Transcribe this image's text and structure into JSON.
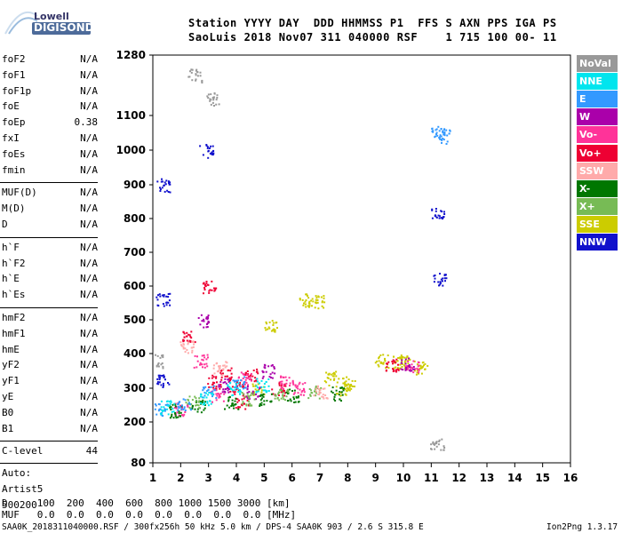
{
  "logo": {
    "top": "Lowell",
    "bottom": "DIGISONDE"
  },
  "header": {
    "line1": "Station YYYY DAY  DDD HHMMSS P1  FFS S AXN PPS IGA PS",
    "line2": "SaoLuis 2018 Nov07 311 040000 RSF    1 715 100 00- 11"
  },
  "params_group1": [
    {
      "name": "foF2",
      "value": "N/A"
    },
    {
      "name": "foF1",
      "value": "N/A"
    },
    {
      "name": "foF1p",
      "value": "N/A"
    },
    {
      "name": "foE",
      "value": "N/A"
    },
    {
      "name": "foEp",
      "value": "0.38"
    },
    {
      "name": "fxI",
      "value": "N/A"
    },
    {
      "name": "foEs",
      "value": "N/A"
    },
    {
      "name": "fmin",
      "value": "N/A"
    }
  ],
  "params_group2": [
    {
      "name": "MUF(D)",
      "value": "N/A"
    },
    {
      "name": "M(D)",
      "value": "N/A"
    },
    {
      "name": "D",
      "value": "N/A"
    }
  ],
  "params_group3": [
    {
      "name": "h`F",
      "value": "N/A"
    },
    {
      "name": "h`F2",
      "value": "N/A"
    },
    {
      "name": "h`E",
      "value": "N/A"
    },
    {
      "name": "h`Es",
      "value": "N/A"
    }
  ],
  "params_group4": [
    {
      "name": "hmF2",
      "value": "N/A"
    },
    {
      "name": "hmF1",
      "value": "N/A"
    },
    {
      "name": "hmE",
      "value": "N/A"
    },
    {
      "name": "yF2",
      "value": "N/A"
    },
    {
      "name": "yF1",
      "value": "N/A"
    },
    {
      "name": "yE",
      "value": "N/A"
    },
    {
      "name": "B0",
      "value": "N/A"
    },
    {
      "name": "B1",
      "value": "N/A"
    }
  ],
  "clevel": {
    "name": "C-level",
    "value": "44"
  },
  "auto": {
    "line1": "Auto:",
    "line2": "Artist5",
    "line3": "500200"
  },
  "bottom": {
    "d_line": "D     100  200  400  600  800 1000 1500 3000 [km]",
    "muf_line": "MUF   0.0  0.0  0.0  0.0  0.0  0.0  0.0  0.0 [MHz]"
  },
  "footer": {
    "left": "SAA0K_2018311040000.RSF / 300fx256h 50 kHz 5.0 km / DPS-4 SAA0K 903 / 2.6 S 315.8 E",
    "right": "Ion2Png 1.3.17"
  },
  "legend": [
    {
      "label": "NoVal",
      "color": "#999999"
    },
    {
      "label": "NNE",
      "color": "#00e5ee"
    },
    {
      "label": "E",
      "color": "#3399ff"
    },
    {
      "label": "W",
      "color": "#aa00aa"
    },
    {
      "label": "Vo-",
      "color": "#ff3399"
    },
    {
      "label": "Vo+",
      "color": "#ee0033"
    },
    {
      "label": "SSW",
      "color": "#ffaaaa"
    },
    {
      "label": "X-",
      "color": "#007700"
    },
    {
      "label": "X+",
      "color": "#77bb55"
    },
    {
      "label": "SSE",
      "color": "#cccc00"
    },
    {
      "label": "NNW",
      "color": "#1111cc"
    }
  ],
  "chart_data": {
    "type": "scatter",
    "x_ticks": [
      "1",
      "2",
      "3",
      "4",
      "5",
      "6",
      "7",
      "8",
      "9",
      "10",
      "11",
      "12",
      "13",
      "14",
      "15",
      "16"
    ],
    "y_ticks": [
      "1280",
      "1100",
      "1000",
      "900",
      "800",
      "700",
      "600",
      "500",
      "400",
      "300",
      "200",
      "80"
    ],
    "xlim": [
      1,
      16
    ],
    "ylim": [
      80,
      1280
    ],
    "grid": false,
    "legend_position": "right",
    "series": [
      {
        "name": "SSE",
        "color": "#cccc00",
        "points": [
          [
            5.2,
            480
          ],
          [
            6.5,
            560
          ],
          [
            7.4,
            330
          ],
          [
            8.0,
            315
          ],
          [
            9.2,
            380
          ],
          [
            10.0,
            375
          ],
          [
            10.6,
            360
          ],
          [
            7.8,
            300
          ],
          [
            4.8,
            300
          ],
          [
            6.9,
            555
          ],
          [
            9.8,
            380
          ]
        ]
      },
      {
        "name": "Vo+",
        "color": "#ee0033",
        "points": [
          [
            3.2,
            320
          ],
          [
            3.6,
            340
          ],
          [
            4.0,
            300
          ],
          [
            4.5,
            340
          ],
          [
            5.5,
            300
          ],
          [
            2.3,
            450
          ],
          [
            9.6,
            370
          ],
          [
            3.0,
            600
          ],
          [
            4.2,
            260
          ]
        ]
      },
      {
        "name": "Vo-",
        "color": "#ff3399",
        "points": [
          [
            2.7,
            380
          ],
          [
            3.3,
            280
          ],
          [
            4.3,
            330
          ],
          [
            5.8,
            320
          ],
          [
            6.2,
            300
          ],
          [
            10.3,
            365
          ],
          [
            2.0,
            240
          ]
        ]
      },
      {
        "name": "W",
        "color": "#aa00aa",
        "points": [
          [
            3.5,
            310
          ],
          [
            4.6,
            290
          ],
          [
            5.1,
            350
          ],
          [
            10.1,
            370
          ],
          [
            2.8,
            500
          ]
        ]
      },
      {
        "name": "X-",
        "color": "#007700",
        "points": [
          [
            2.6,
            250
          ],
          [
            3.8,
            260
          ],
          [
            5.0,
            270
          ],
          [
            6.0,
            280
          ],
          [
            7.6,
            285
          ],
          [
            1.8,
            235
          ]
        ]
      },
      {
        "name": "X+",
        "color": "#77bb55",
        "points": [
          [
            2.4,
            260
          ],
          [
            4.4,
            270
          ],
          [
            5.6,
            280
          ],
          [
            6.8,
            290
          ]
        ]
      },
      {
        "name": "E",
        "color": "#3399ff",
        "points": [
          [
            1.3,
            240
          ],
          [
            2.1,
            250
          ],
          [
            3.0,
            290
          ],
          [
            4.1,
            320
          ],
          [
            11.2,
            1050
          ],
          [
            11.5,
            1040
          ]
        ]
      },
      {
        "name": "NNE",
        "color": "#00e5ee",
        "points": [
          [
            1.5,
            245
          ],
          [
            2.9,
            270
          ],
          [
            3.9,
            300
          ],
          [
            4.9,
            310
          ]
        ]
      },
      {
        "name": "NNW",
        "color": "#1111cc",
        "points": [
          [
            1.35,
            900
          ],
          [
            1.35,
            560
          ],
          [
            1.35,
            320
          ],
          [
            2.9,
            1000
          ],
          [
            11.2,
            820
          ],
          [
            11.3,
            620
          ]
        ]
      },
      {
        "name": "SSW",
        "color": "#ffaaaa",
        "points": [
          [
            2.2,
            420
          ],
          [
            3.4,
            360
          ],
          [
            7.0,
            290
          ]
        ]
      },
      {
        "name": "NoVal",
        "color": "#999999",
        "points": [
          [
            1.1,
            380
          ],
          [
            2.5,
            1220
          ],
          [
            3.1,
            1150
          ],
          [
            11.2,
            140
          ]
        ]
      }
    ]
  }
}
